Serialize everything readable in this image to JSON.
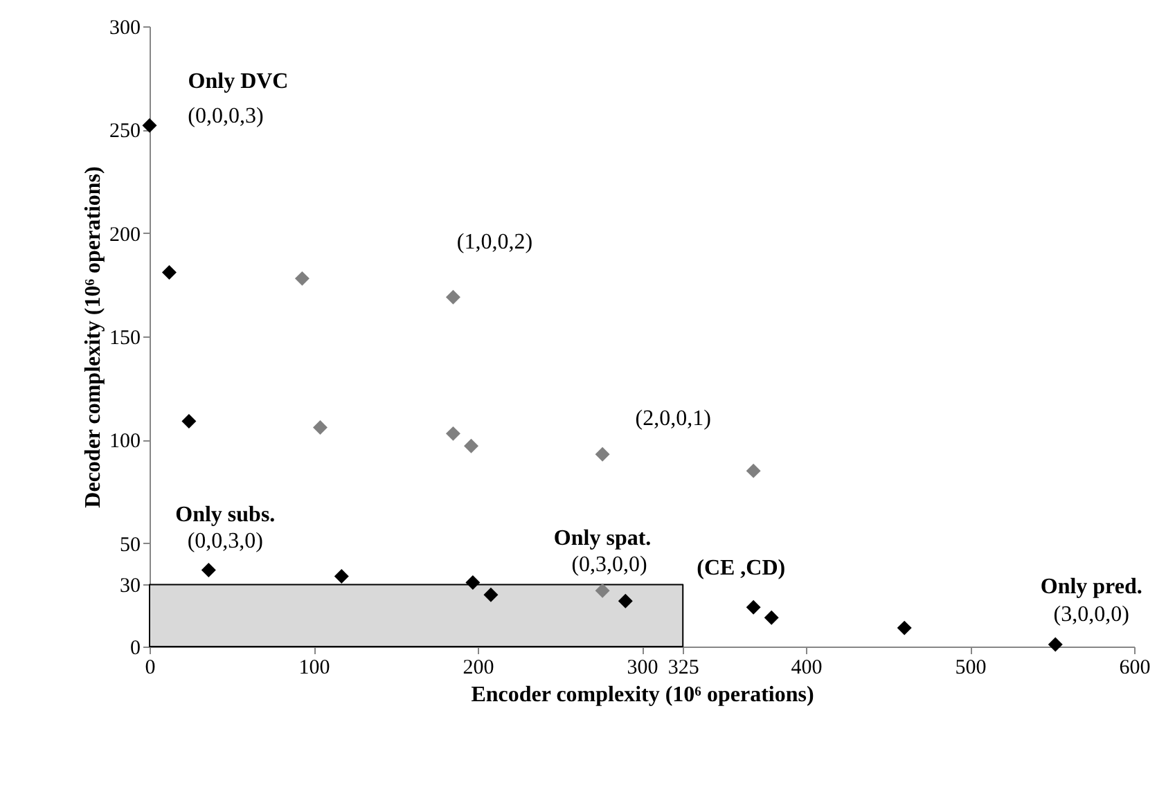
{
  "chart_data": {
    "type": "scatter",
    "xlabel": "Encoder complexity (10⁶ operations)",
    "ylabel": "Decoder complexity (10⁶ operations)",
    "xlim": [
      0,
      600
    ],
    "ylim": [
      0,
      300
    ],
    "xticks": [
      0,
      100,
      200,
      300,
      325,
      400,
      500,
      600
    ],
    "yticks": [
      0,
      30,
      50,
      100,
      150,
      200,
      250,
      300
    ],
    "grid": false,
    "series": [
      {
        "color": "#000000",
        "marker": "diamond",
        "x": [
          0,
          12,
          24,
          36,
          117,
          197,
          208,
          290,
          368,
          379,
          460,
          552
        ],
        "values": [
          252,
          181,
          109,
          37,
          34,
          31,
          25,
          22,
          19,
          14,
          9,
          1
        ]
      },
      {
        "color": "#808080",
        "marker": "diamond",
        "x": [
          93,
          104,
          185,
          185,
          196,
          276,
          276,
          368
        ],
        "values": [
          178,
          106,
          169,
          103,
          97,
          93,
          27,
          85
        ]
      },
      {
        "type": "area",
        "color": "#d9d9d9",
        "x": [
          0,
          325
        ],
        "values": [
          30,
          30
        ]
      }
    ],
    "annotations": [
      {
        "text": "Only DVC",
        "x": 0,
        "y": 252
      },
      {
        "text": "(0,0,0,3)",
        "x": 0,
        "y": 252
      },
      {
        "text": "(1,0,0,2)",
        "x": 185,
        "y": 169
      },
      {
        "text": "(2,0,0,1)",
        "x": 368,
        "y": 85
      },
      {
        "text": "Only subs.",
        "x": 36,
        "y": 37
      },
      {
        "text": "(0,0,3,0)",
        "x": 36,
        "y": 37
      },
      {
        "text": "Only spat.",
        "x": 276,
        "y": 27
      },
      {
        "text": "(0,3,0,0)",
        "x": 276,
        "y": 27
      },
      {
        "text": "(CE ,CD)",
        "x": 325,
        "y": 30
      },
      {
        "text": "Only pred.",
        "x": 552,
        "y": 1
      },
      {
        "text": "(3,0,0,0)",
        "x": 552,
        "y": 1
      }
    ]
  }
}
